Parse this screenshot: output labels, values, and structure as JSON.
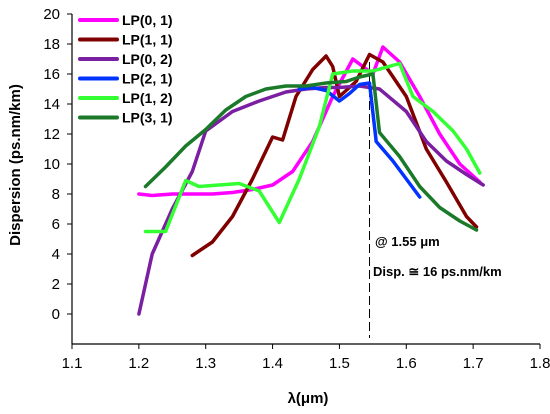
{
  "chart_data": {
    "type": "line",
    "title": "",
    "xlabel": "λ(μm)",
    "ylabel": "Dispersion (ps.nm/km)",
    "xlim": [
      1.1,
      1.8
    ],
    "ylim": [
      -2,
      20
    ],
    "xticks": [
      1.1,
      1.2,
      1.3,
      1.4,
      1.5,
      1.6,
      1.7,
      1.8
    ],
    "xtick_labels": [
      "1.1",
      "1.2",
      "1.3",
      "1.4",
      "1.5",
      "1.6",
      "1.7",
      "1.8"
    ],
    "yticks": [
      0,
      2,
      4,
      6,
      8,
      10,
      12,
      14,
      16,
      18,
      20
    ],
    "ytick_labels": [
      "0",
      "2",
      "4",
      "6",
      "8",
      "10",
      "12",
      "14",
      "16",
      "18",
      "20"
    ],
    "grid": false,
    "legend_position": "top-left",
    "series": [
      {
        "name": "LP(0, 1)",
        "color": "#ff00ff",
        "x": [
          1.2,
          1.22,
          1.25,
          1.28,
          1.31,
          1.34,
          1.37,
          1.4,
          1.43,
          1.46,
          1.49,
          1.52,
          1.55,
          1.565,
          1.59,
          1.62,
          1.65,
          1.68,
          1.71
        ],
        "y": [
          8.0,
          7.9,
          8.0,
          8.0,
          8.0,
          8.1,
          8.3,
          8.6,
          9.5,
          11.5,
          14.5,
          17.0,
          16.0,
          17.8,
          16.8,
          14.5,
          12.0,
          10.0,
          8.8
        ]
      },
      {
        "name": "LP(1, 1)",
        "color": "#800000",
        "x": [
          1.28,
          1.31,
          1.34,
          1.37,
          1.4,
          1.415,
          1.435,
          1.46,
          1.48,
          1.49,
          1.5,
          1.525,
          1.545,
          1.565,
          1.6,
          1.63,
          1.66,
          1.69,
          1.705
        ],
        "y": [
          3.9,
          4.8,
          6.5,
          9.0,
          11.8,
          11.6,
          14.5,
          16.3,
          17.2,
          16.5,
          14.5,
          15.5,
          17.3,
          16.8,
          14.5,
          11.0,
          8.8,
          6.5,
          5.8
        ]
      },
      {
        "name": "LP(0, 2)",
        "color": "#7b1fa2",
        "x": [
          1.2,
          1.22,
          1.25,
          1.28,
          1.3,
          1.34,
          1.38,
          1.42,
          1.45,
          1.48,
          1.5,
          1.53,
          1.56,
          1.6,
          1.63,
          1.66,
          1.69,
          1.715
        ],
        "y": [
          0.0,
          4.0,
          7.0,
          9.5,
          12.2,
          13.5,
          14.2,
          14.8,
          15.0,
          15.1,
          15.1,
          15.2,
          15.0,
          13.5,
          11.5,
          10.2,
          9.3,
          8.6
        ]
      },
      {
        "name": "LP(2, 1)",
        "color": "#0033ff",
        "x": [
          1.44,
          1.46,
          1.48,
          1.5,
          1.515,
          1.53,
          1.545,
          1.555,
          1.58,
          1.6,
          1.62
        ],
        "y": [
          15.0,
          15.1,
          14.9,
          14.2,
          14.7,
          15.3,
          15.4,
          11.5,
          10.2,
          9.0,
          7.8
        ]
      },
      {
        "name": "LP(1, 2)",
        "color": "#33ff33",
        "x": [
          1.21,
          1.24,
          1.27,
          1.29,
          1.32,
          1.35,
          1.38,
          1.41,
          1.44,
          1.47,
          1.49,
          1.52,
          1.55,
          1.59,
          1.61,
          1.64,
          1.67,
          1.69,
          1.71
        ],
        "y": [
          5.5,
          5.5,
          8.9,
          8.5,
          8.6,
          8.7,
          8.2,
          6.1,
          9.0,
          12.5,
          16.0,
          16.2,
          16.2,
          16.7,
          14.5,
          13.5,
          12.2,
          11.0,
          9.4
        ]
      },
      {
        "name": "LP(3, 1)",
        "color": "#1b7a2a",
        "x": [
          1.21,
          1.24,
          1.27,
          1.3,
          1.33,
          1.36,
          1.39,
          1.42,
          1.45,
          1.48,
          1.51,
          1.53,
          1.55,
          1.56,
          1.59,
          1.62,
          1.65,
          1.68,
          1.705
        ],
        "y": [
          8.5,
          9.8,
          11.2,
          12.3,
          13.6,
          14.5,
          15.0,
          15.2,
          15.2,
          15.4,
          15.5,
          15.8,
          16.0,
          12.1,
          10.5,
          8.5,
          7.1,
          6.2,
          5.6
        ]
      }
    ],
    "reference_line": {
      "x": 1.545,
      "style": "dashed",
      "color": "#000000"
    },
    "annotations": [
      "@ 1.55 μm",
      "Disp. ≅ 16 ps.nm/km"
    ]
  }
}
